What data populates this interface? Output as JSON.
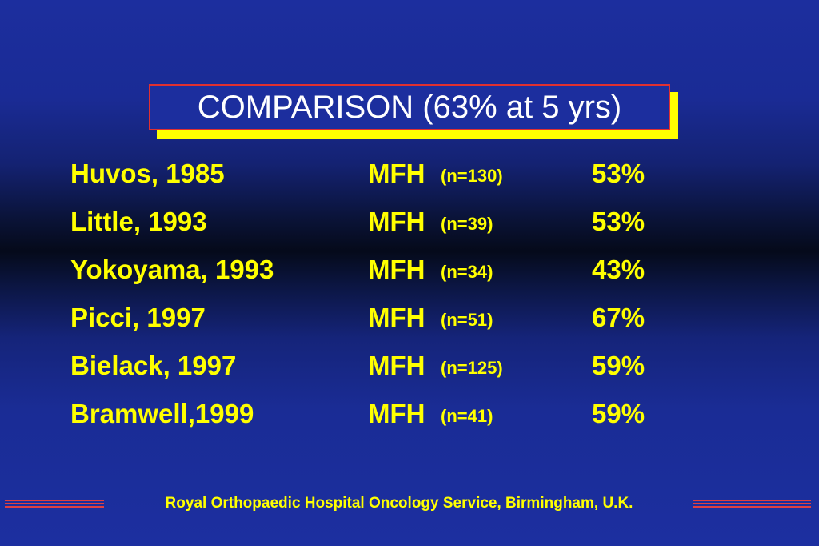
{
  "title": "COMPARISON (63% at  5 yrs)",
  "colors": {
    "background": "#1c2e9e",
    "text": "#ffff00",
    "title_text": "#ffffff",
    "title_border": "#e03030",
    "title_shadow": "#ffff00",
    "footer_lines": "#e04040"
  },
  "rows": [
    {
      "author": "Huvos, 1985",
      "type": "MFH",
      "n": "(n=130)",
      "pct": "53%"
    },
    {
      "author": "Little, 1993",
      "type": "MFH",
      "n": "(n=39)",
      "pct": "53%"
    },
    {
      "author": "Yokoyama, 1993",
      "type": "MFH",
      "n": "(n=34)",
      "pct": "43%"
    },
    {
      "author": "Picci, 1997",
      "type": "MFH",
      "n": "(n=51)",
      "pct": "67%"
    },
    {
      "author": "Bielack, 1997",
      "type": "MFH",
      "n": "(n=125)",
      "pct": "59%"
    },
    {
      "author": "Bramwell,1999",
      "type": "MFH",
      "n": "(n=41)",
      "pct": "59%"
    }
  ],
  "footer": "Royal Orthopaedic Hospital Oncology Service, Birmingham, U.K."
}
